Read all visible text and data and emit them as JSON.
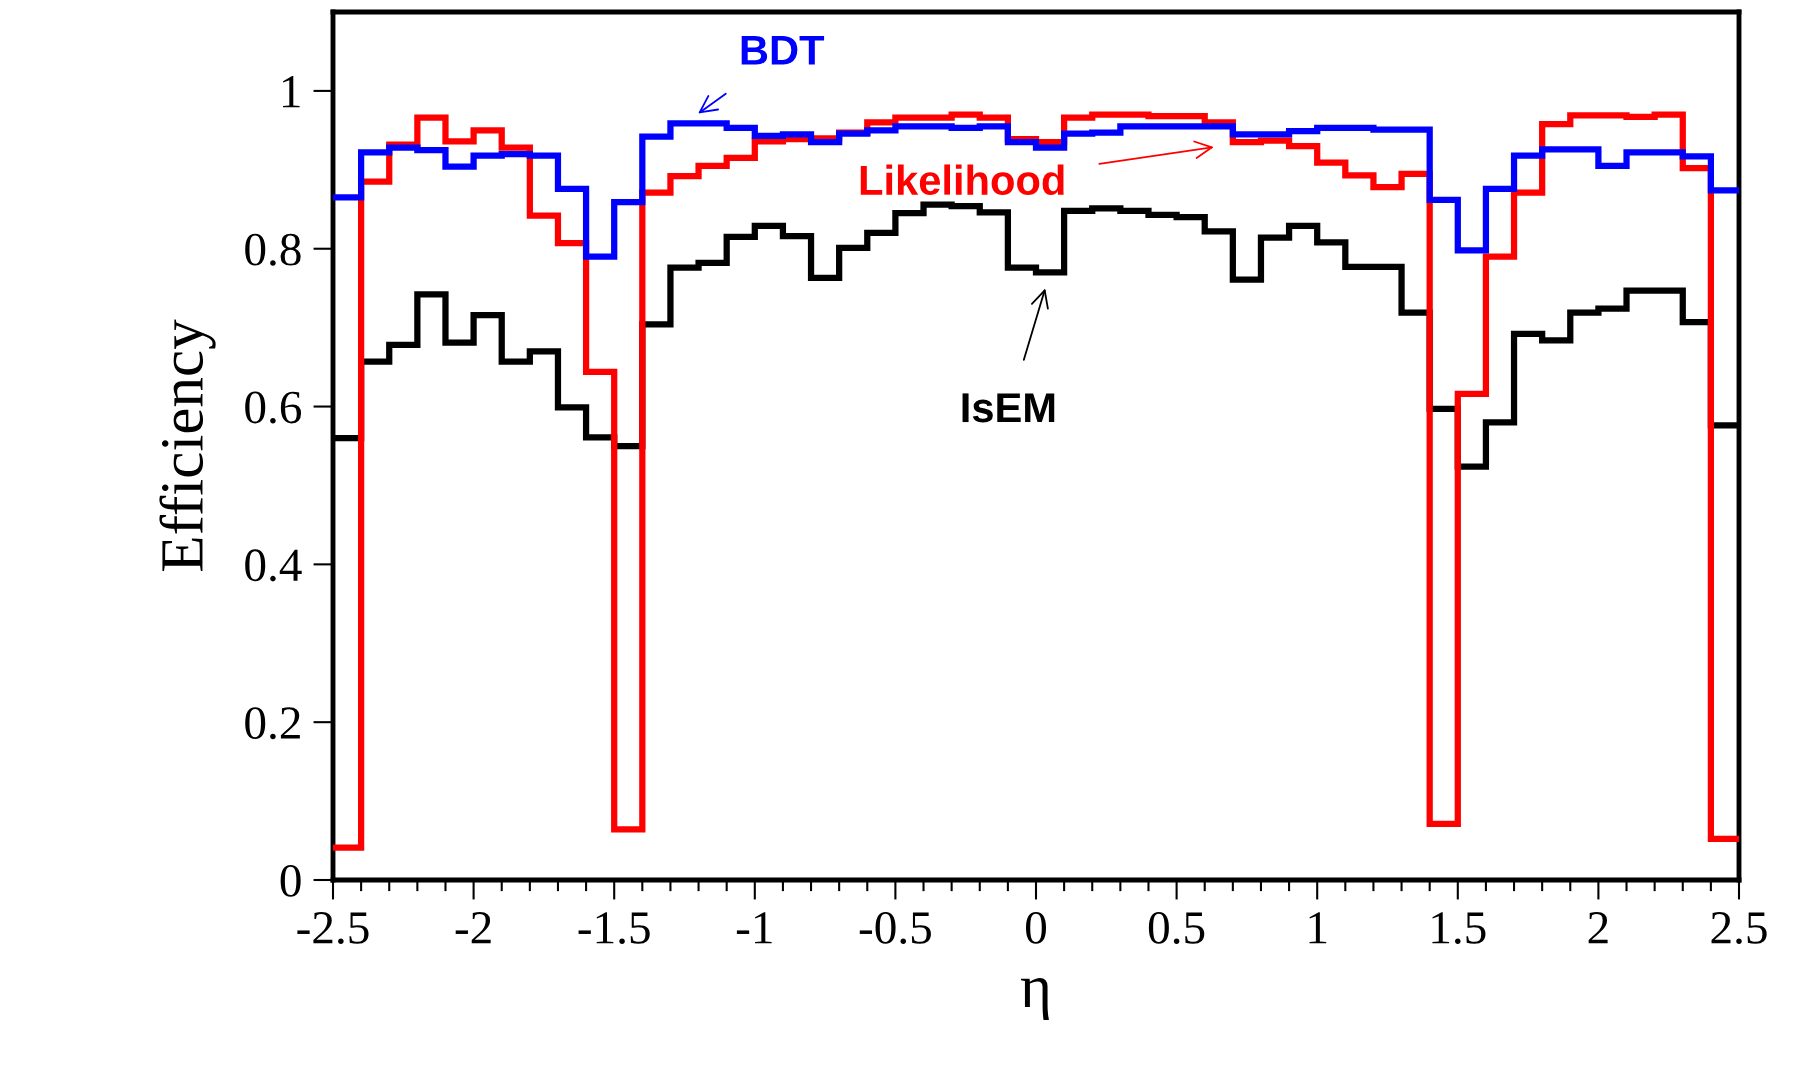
{
  "chart_data": {
    "type": "histogram",
    "xlabel": "η",
    "ylabel": "Efficiency",
    "bins": [
      -2.5,
      -2.4,
      -2.3,
      -2.2,
      -2.1,
      -2.0,
      -1.9,
      -1.8,
      -1.7,
      -1.6,
      -1.5,
      -1.4,
      -1.3,
      -1.2,
      -1.1,
      -1.0,
      -0.9,
      -0.8,
      -0.7,
      -0.6,
      -0.5,
      -0.4,
      -0.3,
      -0.2,
      -0.1,
      0.0,
      0.1,
      0.2,
      0.3,
      0.4,
      0.5,
      0.6,
      0.7,
      0.8,
      0.9,
      1.0,
      1.1,
      1.2,
      1.3,
      1.4,
      1.5,
      1.6,
      1.7,
      1.8,
      1.9,
      2.0,
      2.1,
      2.2,
      2.3,
      2.4,
      2.5
    ],
    "series": [
      {
        "name": "IsEM",
        "color": "#000000",
        "values": [
          0.56,
          0.657,
          0.678,
          0.742,
          0.681,
          0.716,
          0.657,
          0.67,
          0.599,
          0.561,
          0.55,
          0.704,
          0.776,
          0.782,
          0.815,
          0.829,
          0.816,
          0.763,
          0.801,
          0.82,
          0.845,
          0.856,
          0.854,
          0.846,
          0.776,
          0.77,
          0.848,
          0.851,
          0.848,
          0.843,
          0.84,
          0.822,
          0.761,
          0.814,
          0.829,
          0.808,
          0.777,
          0.777,
          0.719,
          0.597,
          0.524,
          0.58,
          0.692,
          0.684,
          0.719,
          0.724,
          0.747,
          0.747,
          0.707,
          0.576
        ]
      },
      {
        "name": "Likelihood",
        "color": "#ff0000",
        "values": [
          0.041,
          0.885,
          0.932,
          0.966,
          0.936,
          0.95,
          0.928,
          0.842,
          0.807,
          0.644,
          0.064,
          0.871,
          0.892,
          0.905,
          0.915,
          0.936,
          0.939,
          0.94,
          0.947,
          0.96,
          0.966,
          0.966,
          0.97,
          0.966,
          0.939,
          0.935,
          0.966,
          0.97,
          0.97,
          0.968,
          0.968,
          0.96,
          0.935,
          0.937,
          0.93,
          0.909,
          0.893,
          0.878,
          0.895,
          0.071,
          0.616,
          0.79,
          0.871,
          0.958,
          0.969,
          0.969,
          0.967,
          0.97,
          0.902,
          0.052
        ]
      },
      {
        "name": "BDT",
        "color": "#0000ff",
        "values": [
          0.865,
          0.922,
          0.928,
          0.925,
          0.904,
          0.918,
          0.92,
          0.918,
          0.876,
          0.79,
          0.859,
          0.942,
          0.959,
          0.959,
          0.953,
          0.943,
          0.945,
          0.935,
          0.946,
          0.95,
          0.955,
          0.955,
          0.953,
          0.955,
          0.935,
          0.928,
          0.946,
          0.947,
          0.955,
          0.955,
          0.955,
          0.955,
          0.945,
          0.945,
          0.949,
          0.953,
          0.953,
          0.951,
          0.951,
          0.862,
          0.798,
          0.876,
          0.918,
          0.926,
          0.926,
          0.905,
          0.922,
          0.922,
          0.917,
          0.874
        ]
      }
    ],
    "xlim": [
      -2.5,
      2.5
    ],
    "ylim": [
      0,
      1.1
    ],
    "xticks": [
      -2.5,
      -2,
      -1.5,
      -1,
      -0.5,
      0,
      0.5,
      1,
      1.5,
      2,
      2.5
    ],
    "yticks": [
      0,
      0.2,
      0.4,
      0.6,
      0.8,
      1
    ],
    "grid": false
  }
}
